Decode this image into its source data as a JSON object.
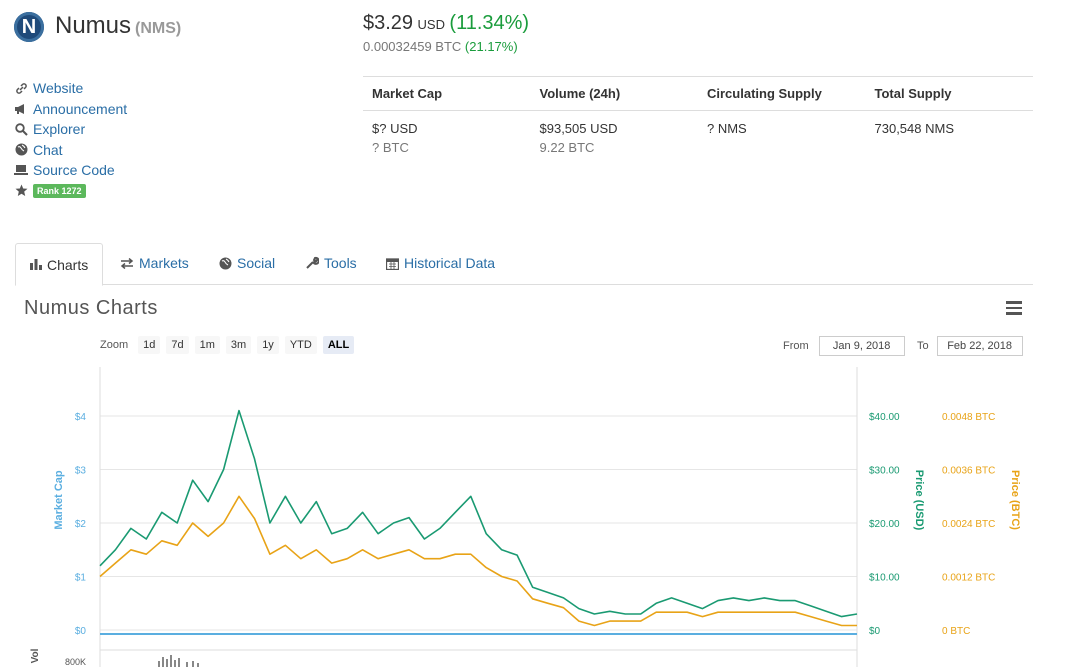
{
  "coin": {
    "logo_letter": "N",
    "name": "Numus",
    "symbol": "(NMS)"
  },
  "price": {
    "usd": "$3.29",
    "currency": "USD",
    "change_usd": "(11.34%)",
    "btc": "0.00032459 BTC",
    "change_btc": "(21.17%)",
    "colors": {
      "positive": "#1a9c3c"
    }
  },
  "links": [
    {
      "icon": "link-icon",
      "label": "Website"
    },
    {
      "icon": "megaphone-icon",
      "label": "Announcement"
    },
    {
      "icon": "search-icon",
      "label": "Explorer"
    },
    {
      "icon": "globe-icon",
      "label": "Chat"
    },
    {
      "icon": "laptop-icon",
      "label": "Source Code"
    }
  ],
  "rank": {
    "icon": "star-icon",
    "label": "Rank 1272"
  },
  "stats": {
    "headers": [
      "Market Cap",
      "Volume (24h)",
      "Circulating Supply",
      "Total Supply"
    ],
    "values": [
      {
        "main": "$? USD",
        "sub": "? BTC"
      },
      {
        "main": "$93,505 USD",
        "sub": "9.22 BTC"
      },
      {
        "main": "? NMS",
        "sub": ""
      },
      {
        "main": "730,548 NMS",
        "sub": ""
      }
    ]
  },
  "tabs": [
    {
      "icon": "bar-chart-icon",
      "label": "Charts",
      "active": true
    },
    {
      "icon": "exchange-icon",
      "label": "Markets",
      "active": false
    },
    {
      "icon": "globe-icon",
      "label": "Social",
      "active": false
    },
    {
      "icon": "wrench-icon",
      "label": "Tools",
      "active": false
    },
    {
      "icon": "calendar-icon",
      "label": "Historical Data",
      "active": false
    }
  ],
  "chart": {
    "title": "Numus Charts",
    "zoom_label": "Zoom",
    "zoom_buttons": [
      "1d",
      "7d",
      "1m",
      "3m",
      "1y",
      "YTD",
      "ALL"
    ],
    "zoom_selected": "ALL",
    "from_label": "From",
    "from_value": "Jan 9, 2018",
    "to_label": "To",
    "to_value": "Feb 22, 2018"
  },
  "chart_data": {
    "type": "line",
    "title": "Numus Charts",
    "axes": {
      "left": {
        "label": "Market Cap",
        "ticks": [
          "$0",
          "$1",
          "$2",
          "$3",
          "$4"
        ],
        "color": "#5aaee0"
      },
      "right_usd": {
        "label": "Price (USD)",
        "ticks": [
          "$0",
          "$10.00",
          "$20.00",
          "$30.00",
          "$40.00"
        ],
        "color": "#1a9a72"
      },
      "right_btc": {
        "label": "Price (BTC)",
        "ticks": [
          "0 BTC",
          "0.0012 BTC",
          "0.0024 BTC",
          "0.0036 BTC",
          "0.0048 BTC"
        ],
        "color": "#e8a317"
      },
      "volume": {
        "label": "Vol",
        "ticks": [
          "800K"
        ]
      }
    },
    "x_range": [
      "Jan 9, 2018",
      "Feb 22, 2018"
    ],
    "series": [
      {
        "name": "Price (USD)",
        "color": "#1a9a72",
        "values": [
          12,
          15,
          19,
          17,
          22,
          20,
          28,
          24,
          30,
          41,
          32,
          20,
          25,
          20,
          24,
          18,
          19,
          22,
          18,
          20,
          21,
          17,
          19,
          22,
          25,
          18,
          15,
          14,
          8,
          7,
          6,
          4,
          3,
          3.5,
          3,
          3,
          5,
          6,
          5,
          4,
          5.5,
          6,
          5.5,
          6,
          5.5,
          5.5,
          4.5,
          3.5,
          2.5,
          3
        ]
      },
      {
        "name": "Price (BTC)",
        "color": "#e8a317",
        "values": [
          0.0012,
          0.0015,
          0.0018,
          0.0017,
          0.002,
          0.0019,
          0.0024,
          0.0021,
          0.0024,
          0.003,
          0.0025,
          0.0017,
          0.0019,
          0.0016,
          0.0018,
          0.0015,
          0.0016,
          0.0018,
          0.0016,
          0.0017,
          0.0018,
          0.0016,
          0.0016,
          0.0017,
          0.0017,
          0.0014,
          0.0012,
          0.0011,
          0.0007,
          0.0006,
          0.0005,
          0.0002,
          0.0001,
          0.0002,
          0.0002,
          0.0002,
          0.0004,
          0.0004,
          0.0004,
          0.0003,
          0.0004,
          0.0004,
          0.0004,
          0.0004,
          0.0004,
          0.0004,
          0.0003,
          0.0002,
          0.0001,
          0.0001
        ]
      },
      {
        "name": "Market Cap",
        "color": "#5aaee0",
        "values": [
          0,
          0,
          0,
          0,
          0,
          0,
          0,
          0,
          0,
          0,
          0,
          0,
          0,
          0,
          0,
          0,
          0,
          0,
          0,
          0,
          0,
          0,
          0,
          0,
          0,
          0,
          0,
          0,
          0,
          0,
          0,
          0,
          0,
          0,
          0,
          0,
          0,
          0,
          0,
          0,
          0,
          0,
          0,
          0,
          0,
          0,
          0,
          0,
          0,
          0
        ]
      }
    ]
  }
}
